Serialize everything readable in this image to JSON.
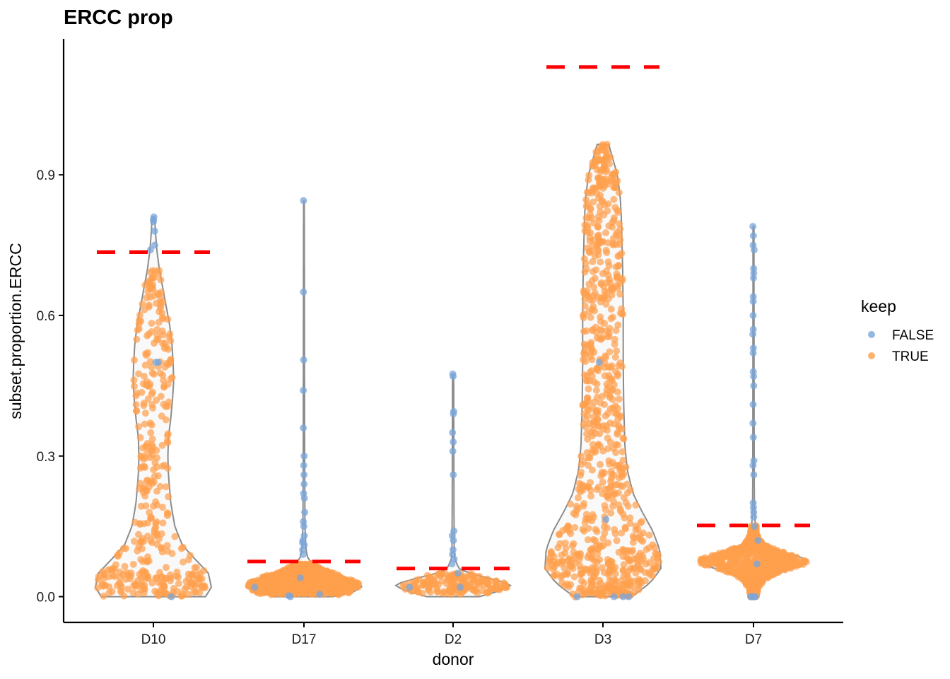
{
  "chart_data": {
    "type": "violin",
    "title": "ERCC prop",
    "xlabel": "donor",
    "ylabel": "subset.proportion.ERCC",
    "categories": [
      "D10",
      "D17",
      "D2",
      "D3",
      "D7"
    ],
    "ylim": [
      -0.055,
      1.19
    ],
    "yticks": [
      {
        "value": 0.0,
        "label": "0.0"
      },
      {
        "value": 0.3,
        "label": "0.3"
      },
      {
        "value": 0.6,
        "label": "0.6"
      },
      {
        "value": 0.9,
        "label": "0.9"
      }
    ],
    "legend": {
      "title": "keep",
      "position": "right",
      "entries": [
        {
          "label": "FALSE",
          "color": "#7aa6d9"
        },
        {
          "label": "TRUE",
          "color": "#ffa04d"
        }
      ]
    },
    "colors": {
      "FALSE": "#7aa6d9",
      "TRUE": "#ffa04d",
      "threshold": "#ff0000",
      "violin_outline": "#8c8c8c",
      "violin_fill": "#f9f9f9"
    },
    "thresholds": [
      0.735,
      0.075,
      0.06,
      1.13,
      0.152
    ],
    "violins": [
      {
        "donor": "D10",
        "ymin": 0.0,
        "ymax": 0.81,
        "profile": [
          [
            0.0,
            0.9
          ],
          [
            0.02,
            1.0
          ],
          [
            0.05,
            0.95
          ],
          [
            0.08,
            0.72
          ],
          [
            0.11,
            0.5
          ],
          [
            0.15,
            0.37
          ],
          [
            0.2,
            0.3
          ],
          [
            0.26,
            0.26
          ],
          [
            0.3,
            0.25
          ],
          [
            0.34,
            0.26
          ],
          [
            0.38,
            0.3
          ],
          [
            0.42,
            0.33
          ],
          [
            0.46,
            0.35
          ],
          [
            0.5,
            0.34
          ],
          [
            0.54,
            0.32
          ],
          [
            0.58,
            0.28
          ],
          [
            0.62,
            0.22
          ],
          [
            0.66,
            0.16
          ],
          [
            0.7,
            0.1
          ],
          [
            0.74,
            0.06
          ],
          [
            0.78,
            0.035
          ],
          [
            0.81,
            0.02
          ]
        ],
        "true_points": {
          "n": 390,
          "max": 0.7,
          "dense": [
            [
              0.0,
              0.06,
              0.34
            ],
            [
              0.06,
              0.12,
              0.1
            ],
            [
              0.12,
              0.7,
              0.56
            ]
          ]
        },
        "false_points": [
          0.0,
          0.5,
          0.5,
          0.74,
          0.75,
          0.78,
          0.8,
          0.805,
          0.81
        ]
      },
      {
        "donor": "D17",
        "ymin": 0.0,
        "ymax": 0.845,
        "profile": [
          [
            0.0,
            0.5
          ],
          [
            0.01,
            0.85
          ],
          [
            0.02,
            1.0
          ],
          [
            0.03,
            0.95
          ],
          [
            0.04,
            0.75
          ],
          [
            0.05,
            0.5
          ],
          [
            0.06,
            0.3
          ],
          [
            0.07,
            0.15
          ],
          [
            0.08,
            0.07
          ],
          [
            0.1,
            0.035
          ],
          [
            0.15,
            0.018
          ],
          [
            0.3,
            0.012
          ],
          [
            0.5,
            0.01
          ],
          [
            0.7,
            0.008
          ],
          [
            0.845,
            0.006
          ]
        ],
        "true_points": {
          "n": 1000,
          "max": 0.07,
          "dense": [
            [
              0.005,
              0.07,
              1.0
            ]
          ]
        },
        "false_points": [
          0.0,
          0.002,
          0.005,
          0.02,
          0.04,
          0.09,
          0.1,
          0.11,
          0.115,
          0.12,
          0.13,
          0.15,
          0.16,
          0.18,
          0.21,
          0.22,
          0.24,
          0.26,
          0.28,
          0.3,
          0.36,
          0.44,
          0.505,
          0.65,
          0.845
        ]
      },
      {
        "donor": "D2",
        "ymin": 0.0,
        "ymax": 0.475,
        "profile": [
          [
            0.0,
            0.45
          ],
          [
            0.01,
            0.75
          ],
          [
            0.02,
            0.95
          ],
          [
            0.025,
            1.0
          ],
          [
            0.03,
            0.9
          ],
          [
            0.04,
            0.6
          ],
          [
            0.05,
            0.28
          ],
          [
            0.06,
            0.1
          ],
          [
            0.08,
            0.03
          ],
          [
            0.1,
            0.02
          ],
          [
            0.2,
            0.015
          ],
          [
            0.35,
            0.012
          ],
          [
            0.475,
            0.01
          ]
        ],
        "true_points": {
          "n": 170,
          "max": 0.05,
          "dense": [
            [
              0.005,
              0.05,
              1.0
            ]
          ]
        },
        "false_points": [
          0.02,
          0.02,
          0.05,
          0.07,
          0.08,
          0.09,
          0.1,
          0.12,
          0.13,
          0.14,
          0.26,
          0.31,
          0.33,
          0.35,
          0.39,
          0.395,
          0.47,
          0.475
        ]
      },
      {
        "donor": "D3",
        "ymin": 0.0,
        "ymax": 0.965,
        "profile": [
          [
            0.0,
            0.5
          ],
          [
            0.03,
            0.82
          ],
          [
            0.06,
            1.0
          ],
          [
            0.1,
            0.98
          ],
          [
            0.14,
            0.86
          ],
          [
            0.18,
            0.68
          ],
          [
            0.22,
            0.52
          ],
          [
            0.27,
            0.42
          ],
          [
            0.32,
            0.38
          ],
          [
            0.4,
            0.36
          ],
          [
            0.5,
            0.35
          ],
          [
            0.6,
            0.35
          ],
          [
            0.7,
            0.34
          ],
          [
            0.8,
            0.32
          ],
          [
            0.85,
            0.3
          ],
          [
            0.9,
            0.25
          ],
          [
            0.93,
            0.18
          ],
          [
            0.965,
            0.1
          ]
        ],
        "true_points": {
          "n": 820,
          "max": 0.965,
          "dense": [
            [
              0.0,
              0.1,
              0.3
            ],
            [
              0.1,
              0.3,
              0.2
            ],
            [
              0.3,
              0.965,
              0.5
            ]
          ]
        },
        "false_points": [
          0.0,
          0.0,
          0.0,
          0.0,
          0.165,
          0.5
        ]
      },
      {
        "donor": "D7",
        "ymin": 0.0,
        "ymax": 0.79,
        "profile": [
          [
            0.0,
            0.05
          ],
          [
            0.02,
            0.08
          ],
          [
            0.04,
            0.22
          ],
          [
            0.055,
            0.52
          ],
          [
            0.065,
            0.82
          ],
          [
            0.075,
            1.0
          ],
          [
            0.085,
            0.82
          ],
          [
            0.095,
            0.5
          ],
          [
            0.11,
            0.18
          ],
          [
            0.13,
            0.06
          ],
          [
            0.15,
            0.03
          ],
          [
            0.2,
            0.015
          ],
          [
            0.3,
            0.012
          ],
          [
            0.5,
            0.01
          ],
          [
            0.79,
            0.008
          ]
        ],
        "true_points": {
          "n": 1200,
          "max": 0.15,
          "dense": [
            [
              0.0,
              0.15,
              1.0
            ]
          ]
        },
        "false_points": [
          0.0,
          0.0,
          0.0,
          0.0,
          0.07,
          0.12,
          0.15,
          0.17,
          0.18,
          0.19,
          0.2,
          0.26,
          0.28,
          0.29,
          0.34,
          0.37,
          0.41,
          0.45,
          0.47,
          0.48,
          0.52,
          0.53,
          0.56,
          0.57,
          0.6,
          0.63,
          0.64,
          0.68,
          0.69,
          0.7,
          0.74,
          0.75,
          0.77,
          0.79
        ]
      }
    ]
  }
}
